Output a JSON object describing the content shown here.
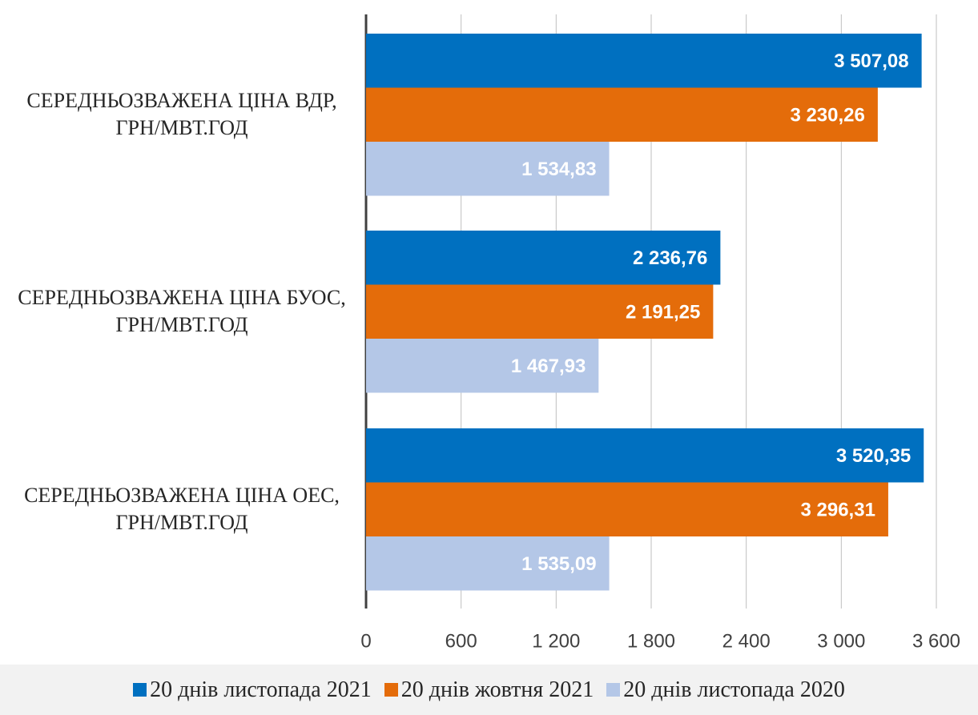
{
  "chart_data": {
    "type": "barh",
    "categories": [
      "СЕРЕДНЬОЗВАЖЕНА ЦІНА ВДР, ГРН/МВТ.ГОД",
      "СЕРЕДНЬОЗВАЖЕНА ЦІНА БУОС, ГРН/МВТ.ГОД",
      "СЕРЕДНЬОЗВАЖЕНА ЦІНА ОЕС, ГРН/МВТ.ГОД"
    ],
    "series": [
      {
        "name": "20 днів листопада 2021",
        "color": "#0070c0",
        "values": [
          3507.08,
          2236.76,
          3520.35
        ],
        "value_labels": [
          "3 507,08",
          "2 236,76",
          "3 520,35"
        ]
      },
      {
        "name": "20 днів жовтня 2021",
        "color": "#e46c0a",
        "values": [
          3230.26,
          2191.25,
          3296.31
        ],
        "value_labels": [
          "3 230,26",
          "2 191,25",
          "3 296,31"
        ]
      },
      {
        "name": "20 днів листопада 2020",
        "color": "#b4c7e7",
        "values": [
          1534.83,
          1467.93,
          1535.09
        ],
        "value_labels": [
          "1 534,83",
          "1 467,93",
          "1 535,09"
        ]
      }
    ],
    "xlim": [
      0,
      3600
    ],
    "xticks": [
      0,
      600,
      {
        "value": 1200,
        "label": "1 200"
      },
      {
        "value": 1800,
        "label": "1 800"
      },
      {
        "value": 2400,
        "label": "2 400"
      },
      {
        "value": 3000,
        "label": "3 000"
      },
      {
        "value": 3600,
        "label": "3 600"
      }
    ],
    "grid": true,
    "legend": "bottom"
  }
}
